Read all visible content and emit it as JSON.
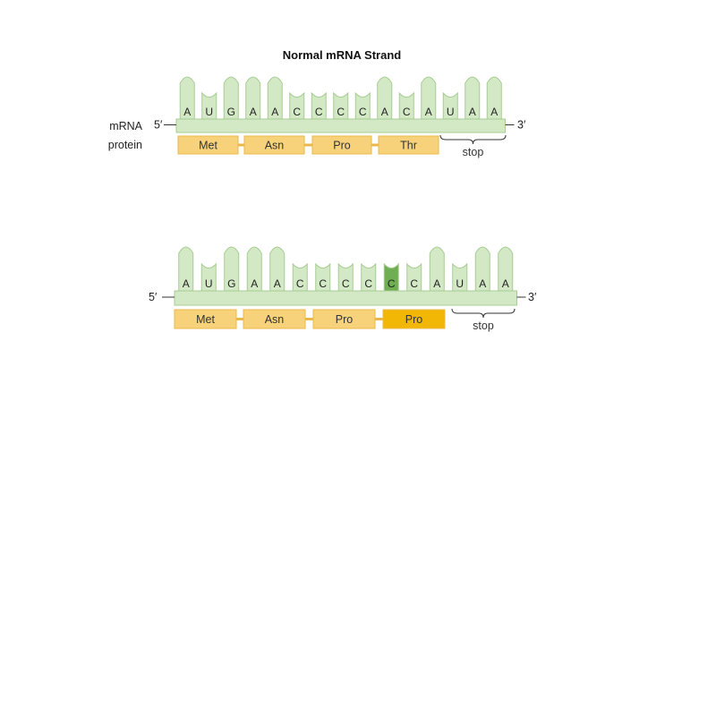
{
  "title": "Normal mRNA Strand",
  "labels": {
    "mrna": "mRNA",
    "protein": "protein",
    "five_prime": "5′",
    "three_prime": "3′",
    "stop": "stop"
  },
  "colors": {
    "strand_fill": "#d3e9c6",
    "strand_stroke": "#a7cc92",
    "mutated_base_fill": "#6fae52",
    "amino_acid_fill": "#f8d27a",
    "amino_acid_stroke": "#e9b84a",
    "mutated_amino_acid_fill": "#f2b705"
  },
  "strands": [
    {
      "name": "normal-strand",
      "show_side_labels": true,
      "bases": [
        "A",
        "U",
        "G",
        "A",
        "A",
        "C",
        "C",
        "C",
        "C",
        "A",
        "C",
        "A",
        "U",
        "A",
        "A"
      ],
      "mutated_index": null,
      "amino_acids": [
        {
          "label": "Met",
          "mutated": false
        },
        {
          "label": "Asn",
          "mutated": false
        },
        {
          "label": "Pro",
          "mutated": false
        },
        {
          "label": "Thr",
          "mutated": false
        }
      ]
    },
    {
      "name": "mutated-strand",
      "show_side_labels": false,
      "bases": [
        "A",
        "U",
        "G",
        "A",
        "A",
        "C",
        "C",
        "C",
        "C",
        "C",
        "C",
        "A",
        "U",
        "A",
        "A"
      ],
      "mutated_index": 9,
      "amino_acids": [
        {
          "label": "Met",
          "mutated": false
        },
        {
          "label": "Asn",
          "mutated": false
        },
        {
          "label": "Pro",
          "mutated": false
        },
        {
          "label": "Pro",
          "mutated": true
        }
      ]
    }
  ]
}
